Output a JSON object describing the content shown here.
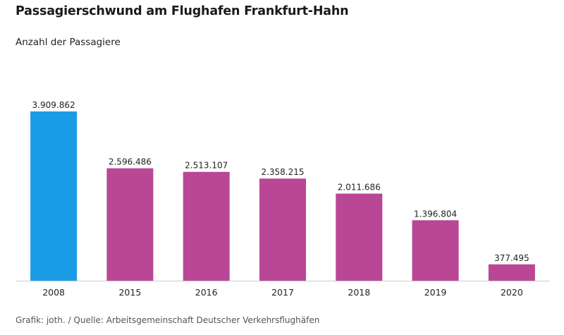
{
  "chart_data": {
    "type": "bar",
    "title": "Passagierschwund am Flughafen Frankfurt-Hahn",
    "subtitle": "Anzahl der Passagiere",
    "categories": [
      "2008",
      "2015",
      "2016",
      "2017",
      "2018",
      "2019",
      "2020"
    ],
    "values": [
      3909862,
      2596486,
      2513107,
      2358215,
      2011686,
      1396804,
      377495
    ],
    "value_labels": [
      "3.909.862",
      "2.596.486",
      "2.513.107",
      "2.358.215",
      "2.011.686",
      "1.396.804",
      "377.495"
    ],
    "bar_colors": [
      "#1a9be6",
      "#b94795",
      "#b94795",
      "#b94795",
      "#b94795",
      "#b94795",
      "#b94795"
    ],
    "ylim": [
      0,
      3909862
    ],
    "grid": false,
    "legend": "none",
    "source": "Grafik: joth. / Quelle: Arbeitsgemeinschaft Deutscher Verkehrsflughäfen"
  },
  "colors": {
    "baseline": "#cccccc",
    "text": "#222222",
    "source_text": "#555555"
  }
}
